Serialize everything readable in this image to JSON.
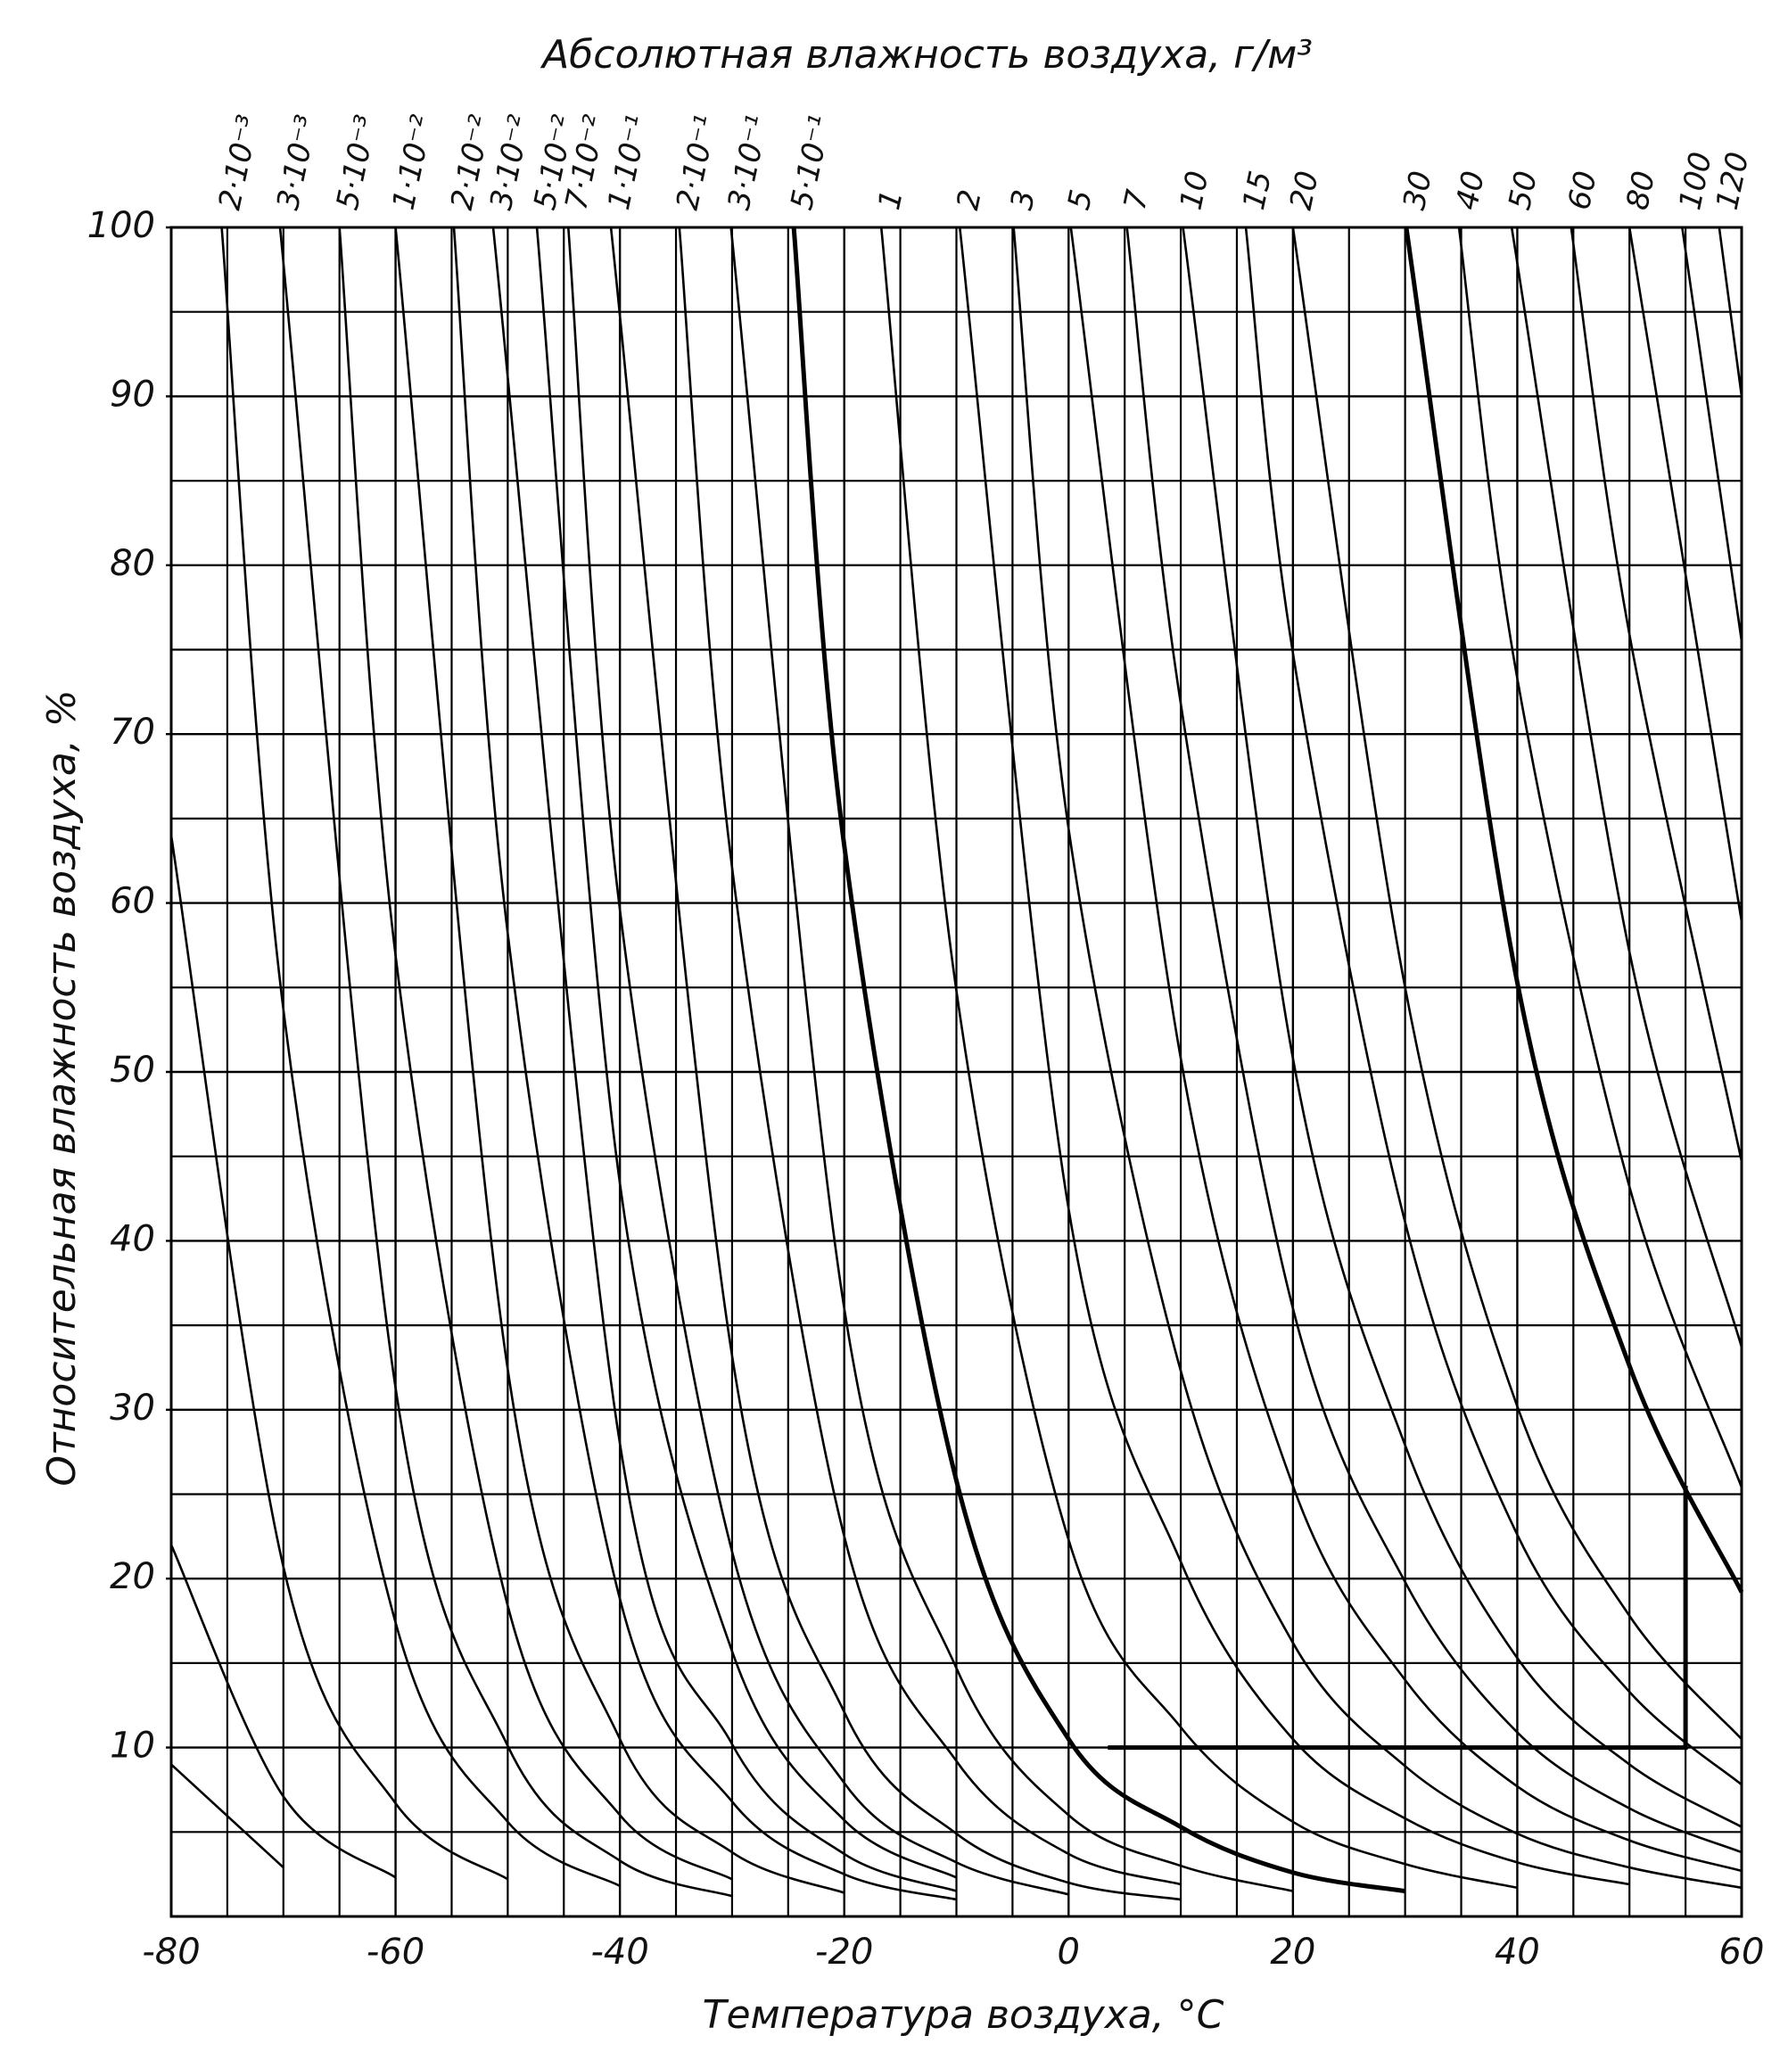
{
  "chart_data": {
    "type": "line",
    "title": "Абсолютная влажность воздуха, г/м³",
    "x_label": "Температура воздуха, °С",
    "y_label": "Относительная влажность воздуха, %",
    "xlim": [
      -80,
      60
    ],
    "ylim": [
      0,
      100
    ],
    "xticks": [
      -80,
      -60,
      -40,
      -20,
      0,
      20,
      40,
      60
    ],
    "yticks": [
      10,
      20,
      30,
      40,
      50,
      60,
      70,
      80,
      90,
      100
    ],
    "xminorticks": [
      -75,
      -70,
      -65,
      -55,
      -50,
      -45,
      -35,
      -30,
      -25,
      -15,
      -10,
      -5,
      5,
      10,
      15,
      25,
      30,
      35,
      45,
      50,
      55
    ],
    "yminorticks": [
      5,
      15,
      25,
      35,
      45,
      55,
      65,
      75,
      85,
      95
    ],
    "grid": true,
    "color": "#000000",
    "series": [
      {
        "x": [
          -80,
          -70,
          -60,
          -50
        ],
        "values": [
          64,
          20.7,
          6.7,
          2.2
        ]
      },
      {
        "x": [
          -80,
          -70,
          -60
        ],
        "values": [
          22,
          7.1,
          2.3
        ]
      },
      {
        "x": [
          -80,
          -70
        ],
        "values": [
          9,
          2.9
        ]
      },
      {
        "name": "2·10⁻³",
        "x": [
          -75.5,
          -70,
          -60,
          -50,
          -40
        ],
        "values": [
          100,
          53.7,
          17.4,
          5.6,
          1.8
        ]
      },
      {
        "name": "3·10⁻³",
        "x": [
          -70.3,
          -60,
          -50,
          -40,
          -30
        ],
        "values": [
          100,
          31.3,
          10.1,
          3.3,
          1.2
        ]
      },
      {
        "name": "5·10⁻³",
        "x": [
          -65,
          -60,
          -50,
          -40,
          -30
        ],
        "values": [
          100,
          56.9,
          18.4,
          6.0,
          2.2
        ]
      },
      {
        "name": "1·10⁻²",
        "x": [
          -60,
          -50,
          -40,
          -30,
          -20
        ],
        "values": [
          100,
          32.4,
          10.5,
          3.8,
          1.4
        ]
      },
      {
        "name": "2·10⁻²",
        "x": [
          -54.8,
          -50,
          -40,
          -30,
          -20,
          -10
        ],
        "values": [
          100,
          58.2,
          18.8,
          6.8,
          2.5,
          1.0
        ]
      },
      {
        "name": "3·10⁻²",
        "x": [
          -51.3,
          -40,
          -30,
          -20,
          -10
        ],
        "values": [
          100,
          28.0,
          10.2,
          3.7,
          1.5
        ]
      },
      {
        "name": "5·10⁻²",
        "x": [
          -47.4,
          -40,
          -30,
          -20,
          -10
        ],
        "values": [
          100,
          43.4,
          15.7,
          5.7,
          2.3
        ]
      },
      {
        "name": "7·10⁻²",
        "x": [
          -44.6,
          -40,
          -30,
          -20,
          -10,
          0
        ],
        "values": [
          100,
          59.6,
          21.6,
          7.9,
          3.2,
          1.3
        ]
      },
      {
        "name": "1·10⁻¹",
        "x": [
          -40.8,
          -30,
          -20,
          -10,
          0,
          10
        ],
        "values": [
          100,
          33.2,
          12.1,
          4.9,
          2.0,
          1.0
        ]
      },
      {
        "name": "2·10⁻¹",
        "x": [
          -34.7,
          -30,
          -20,
          -10,
          0,
          10
        ],
        "values": [
          100,
          62.1,
          22.5,
          9.2,
          3.7,
          1.9
        ]
      },
      {
        "name": "3·10⁻¹",
        "x": [
          -30.1,
          -20,
          -10,
          0,
          10,
          20
        ],
        "values": [
          100,
          36.0,
          14.7,
          6.0,
          3.0,
          1.5
        ]
      },
      {
        "name": "5·10⁻¹",
        "bold": true,
        "x": [
          -24.5,
          -20,
          -10,
          0,
          10,
          20,
          30
        ],
        "values": [
          100,
          63.4,
          25.8,
          10.5,
          5.3,
          2.6,
          1.5
        ]
      },
      {
        "name": "1",
        "x": [
          -16.7,
          -10,
          0,
          10,
          20,
          30,
          40
        ],
        "values": [
          100,
          54.8,
          22.3,
          11.2,
          5.6,
          3.1,
          1.7
        ]
      },
      {
        "name": "2",
        "x": [
          -9.7,
          0,
          10,
          20,
          30,
          40,
          50
        ],
        "values": [
          100,
          41.9,
          21.0,
          10.5,
          5.8,
          3.2,
          1.9
        ]
      },
      {
        "name": "3",
        "x": [
          -4.9,
          0,
          10,
          20,
          30,
          40,
          50,
          60
        ],
        "values": [
          100,
          64.4,
          32.3,
          16.2,
          8.9,
          4.9,
          2.9,
          1.7
        ]
      },
      {
        "name": "5",
        "x": [
          0.2,
          10,
          20,
          30,
          40,
          50,
          60
        ],
        "values": [
          100,
          50.8,
          25.5,
          14.0,
          7.7,
          4.5,
          2.7
        ]
      },
      {
        "name": "7",
        "x": [
          5.2,
          10,
          20,
          30,
          40,
          50,
          60
        ],
        "values": [
          100,
          71.8,
          36.0,
          19.8,
          10.9,
          6.4,
          3.8
        ]
      },
      {
        "name": "10",
        "x": [
          10.2,
          20,
          30,
          40,
          50,
          60
        ],
        "values": [
          100,
          50.8,
          27.9,
          15.3,
          9.0,
          5.3
        ]
      },
      {
        "name": "15",
        "x": [
          15.8,
          20,
          30,
          40,
          50,
          60
        ],
        "values": [
          100,
          74.8,
          41.1,
          22.6,
          13.3,
          7.8
        ]
      },
      {
        "name": "20",
        "x": [
          20,
          30,
          40,
          50,
          60
        ],
        "values": [
          100,
          55.0,
          30.2,
          17.8,
          10.5
        ]
      },
      {
        "name": "30",
        "bold": true,
        "x": [
          30.1,
          40,
          50,
          60
        ],
        "values": [
          100,
          55.3,
          32.6,
          19.2
        ]
      },
      {
        "name": "40",
        "x": [
          34.8,
          40,
          50,
          60
        ],
        "values": [
          100,
          73.3,
          43.2,
          25.4
        ]
      },
      {
        "name": "50",
        "x": [
          39.5,
          50,
          60
        ],
        "values": [
          100,
          57.1,
          33.7
        ]
      },
      {
        "name": "60",
        "x": [
          44.8,
          50,
          60
        ],
        "values": [
          100,
          75.9,
          44.7
        ]
      },
      {
        "name": "80",
        "x": [
          50,
          60
        ],
        "values": [
          100,
          58.9
        ]
      },
      {
        "name": "100",
        "x": [
          54.7,
          60
        ],
        "values": [
          100,
          75.5
        ]
      },
      {
        "name": "120",
        "x": [
          58,
          60
        ],
        "values": [
          100,
          90.0
        ]
      }
    ],
    "highlight_path": {
      "x": [
        3.5,
        55,
        55
      ],
      "values": [
        10,
        10,
        25.5
      ]
    }
  }
}
